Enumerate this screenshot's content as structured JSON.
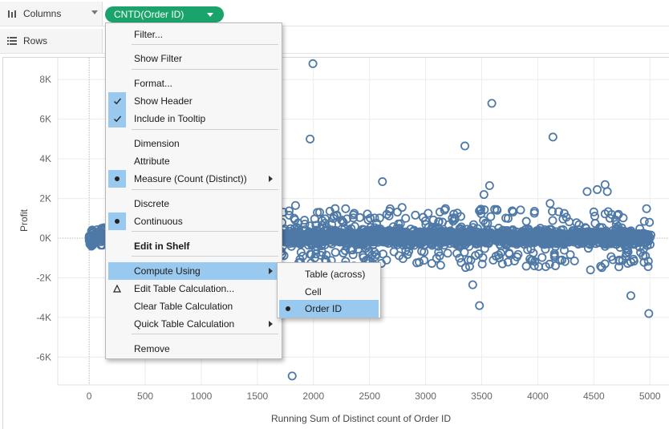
{
  "shelves": {
    "columns": {
      "label": "Columns",
      "icon": "columns-icon",
      "pill": "CNTD(Order ID)",
      "pill_color": "#1aa36b"
    },
    "rows": {
      "label": "Rows",
      "icon": "rows-icon"
    }
  },
  "menu": {
    "items": [
      {
        "label": "Filter..."
      },
      {
        "label": "Show Filter"
      },
      {
        "label": "Format..."
      },
      {
        "label": "Show Header",
        "checked": true
      },
      {
        "label": "Include in Tooltip",
        "checked": true
      },
      {
        "label": "Dimension"
      },
      {
        "label": "Attribute"
      },
      {
        "label": "Measure (Count (Distinct))",
        "selected": true,
        "submenu": true
      },
      {
        "label": "Discrete"
      },
      {
        "label": "Continuous",
        "selected": true
      },
      {
        "label": "Edit in Shelf",
        "bold": true
      },
      {
        "label": "Compute Using",
        "highlighted": true,
        "submenu": true
      },
      {
        "label": "Edit Table Calculation...",
        "icon": "delta-icon"
      },
      {
        "label": "Clear Table Calculation"
      },
      {
        "label": "Quick Table Calculation",
        "submenu": true
      },
      {
        "label": "Remove"
      }
    ],
    "highlight_color": "#99c9ee"
  },
  "submenu": {
    "items": [
      {
        "label": "Table (across)"
      },
      {
        "label": "Cell"
      },
      {
        "label": "Order ID",
        "selected": true
      }
    ]
  },
  "chart_data": {
    "type": "scatter",
    "xlabel": "Running Sum of Distinct count of Order ID",
    "ylabel": "Profit",
    "xlim": [
      -280,
      5170
    ],
    "ylim": [
      -7400,
      9100
    ],
    "x_ticks": [
      0,
      500,
      1000,
      1500,
      2000,
      2500,
      3000,
      3500,
      4000,
      4500,
      5000
    ],
    "x_tick_labels": [
      "0",
      "500",
      "1000",
      "1500",
      "2000",
      "2500",
      "3000",
      "3500",
      "4000",
      "4500",
      "5000"
    ],
    "y_ticks": [
      -6000,
      -4000,
      -2000,
      0,
      2000,
      4000,
      6000,
      8000
    ],
    "y_tick_labels": [
      "-6K",
      "-4K",
      "-2K",
      "0K",
      "2K",
      "4K",
      "6K",
      "8K"
    ],
    "mark_color": "#4e79a7",
    "grid": true,
    "outliers": [
      {
        "x": 1995,
        "y": 8800
      },
      {
        "x": 3590,
        "y": 6800
      },
      {
        "x": 1970,
        "y": 5000
      },
      {
        "x": 4135,
        "y": 5100
      },
      {
        "x": 3350,
        "y": 4650
      },
      {
        "x": 2615,
        "y": 2850
      },
      {
        "x": 3570,
        "y": 2650
      },
      {
        "x": 4600,
        "y": 2700
      },
      {
        "x": 4440,
        "y": 2350
      },
      {
        "x": 4530,
        "y": 2450
      },
      {
        "x": 4620,
        "y": 2350
      },
      {
        "x": 3520,
        "y": 2200
      },
      {
        "x": 4110,
        "y": 1750
      },
      {
        "x": 1840,
        "y": 1650
      },
      {
        "x": 2790,
        "y": 1550
      },
      {
        "x": 2035,
        "y": 1300
      },
      {
        "x": 3420,
        "y": -2350
      },
      {
        "x": 3480,
        "y": -3400
      },
      {
        "x": 4830,
        "y": -2900
      },
      {
        "x": 4990,
        "y": -3800
      },
      {
        "x": 4470,
        "y": -1600
      },
      {
        "x": 1810,
        "y": -6950
      },
      {
        "x": 3380,
        "y": -1100
      },
      {
        "x": 3930,
        "y": -1050
      },
      {
        "x": 4215,
        "y": -1100
      },
      {
        "x": 4830,
        "y": -1200
      },
      {
        "x": 4960,
        "y": -900
      },
      {
        "x": 2620,
        "y": -800
      },
      {
        "x": 4950,
        "y": 850
      },
      {
        "x": 4710,
        "y": 1150
      }
    ],
    "band": {
      "x_start": 0,
      "x_end": 5009,
      "y_center": 50,
      "y_spread": 350,
      "count": 2600
    }
  }
}
